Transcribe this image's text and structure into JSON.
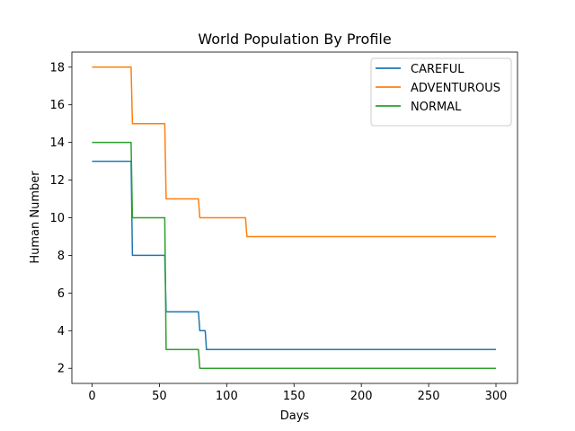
{
  "chart_data": {
    "type": "line",
    "title": "World Population By Profile",
    "xlabel": "Days",
    "ylabel": "Human Number",
    "xlim": [
      -15,
      316
    ],
    "ylim": [
      1.2,
      18.8
    ],
    "xticks": [
      0,
      50,
      100,
      150,
      200,
      250,
      300
    ],
    "yticks": [
      2,
      4,
      6,
      8,
      10,
      12,
      14,
      16,
      18
    ],
    "grid": false,
    "legend_position": "top-right",
    "series": [
      {
        "name": "CAREFUL",
        "color": "#1f77b4",
        "points": [
          [
            0,
            13
          ],
          [
            29,
            13
          ],
          [
            30,
            8
          ],
          [
            54,
            8
          ],
          [
            55,
            5
          ],
          [
            79,
            5
          ],
          [
            80,
            4
          ],
          [
            84,
            4
          ],
          [
            85,
            3
          ],
          [
            300,
            3
          ]
        ]
      },
      {
        "name": "ADVENTUROUS",
        "color": "#ff7f0e",
        "points": [
          [
            0,
            18
          ],
          [
            29,
            18
          ],
          [
            30,
            15
          ],
          [
            54,
            15
          ],
          [
            55,
            11
          ],
          [
            79,
            11
          ],
          [
            80,
            10
          ],
          [
            114,
            10
          ],
          [
            115,
            9
          ],
          [
            300,
            9
          ]
        ]
      },
      {
        "name": "NORMAL",
        "color": "#2ca02c",
        "points": [
          [
            0,
            14
          ],
          [
            29,
            14
          ],
          [
            30,
            10
          ],
          [
            54,
            10
          ],
          [
            55,
            3
          ],
          [
            79,
            3
          ],
          [
            80,
            2
          ],
          [
            300,
            2
          ]
        ]
      }
    ]
  }
}
